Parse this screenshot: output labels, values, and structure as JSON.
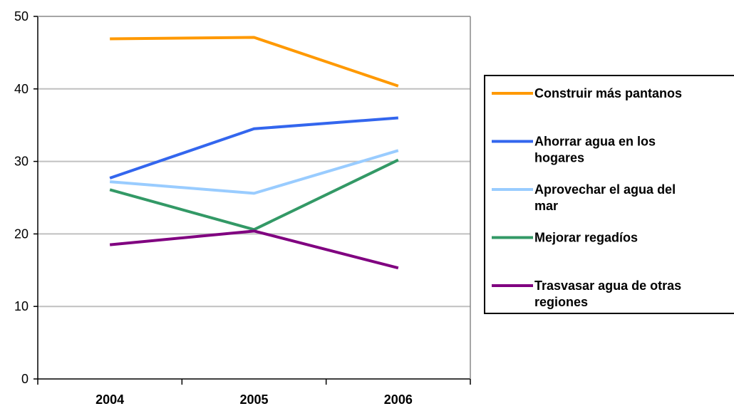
{
  "chart_data": {
    "type": "line",
    "categories": [
      "2004",
      "2005",
      "2006"
    ],
    "ylim": [
      0,
      50
    ],
    "yticks": [
      0,
      10,
      20,
      30,
      40,
      50
    ],
    "grid": true,
    "legend_position": "right",
    "series": [
      {
        "name": "Construir más pantanos",
        "color": "#ff9900",
        "values": [
          46.9,
          47.1,
          40.4
        ]
      },
      {
        "name": "Ahorrar agua en los hogares",
        "color": "#3366ee",
        "values": [
          27.7,
          34.5,
          36.0
        ]
      },
      {
        "name": "Aprovechar el agua del mar",
        "color": "#99ccff",
        "values": [
          27.2,
          25.6,
          31.5
        ]
      },
      {
        "name": "Mejorar regadíos",
        "color": "#339966",
        "values": [
          26.1,
          20.6,
          30.2
        ]
      },
      {
        "name": "Trasvasar agua de otras regiones",
        "color": "#800080",
        "values": [
          18.5,
          20.4,
          15.3
        ]
      }
    ]
  }
}
